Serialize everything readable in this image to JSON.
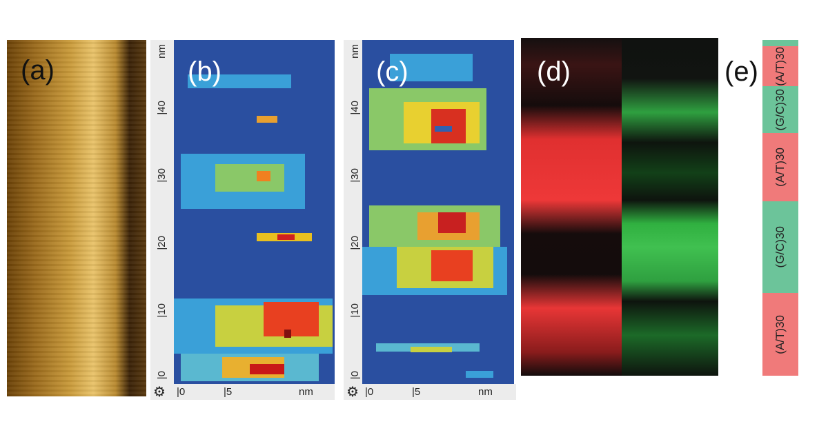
{
  "panels": {
    "a": "(a)",
    "b": "(b)",
    "c": "(c)",
    "d": "(d)",
    "e": "(e)"
  },
  "heatmap_axes": {
    "unit": "nm",
    "y_ticks": [
      "0",
      "10",
      "20",
      "30",
      "40"
    ],
    "x_ticks": [
      "0",
      "5"
    ]
  },
  "sequence_bar": [
    {
      "label": "",
      "type": "G/C"
    },
    {
      "label": "(A/T)30",
      "type": "A/T"
    },
    {
      "label": "(G/C)30",
      "type": "G/C"
    },
    {
      "label": "(A/T)30",
      "type": "A/T"
    },
    {
      "label": "(G/C)30",
      "type": "G/C"
    },
    {
      "label": "(A/T)30",
      "type": "A/T"
    }
  ],
  "colors": {
    "at": "#f07a7a",
    "gc": "#6cc49a",
    "heat_low": "#2a4fa0",
    "heat_high": "#c01818"
  },
  "icons": {
    "settings": "gear-icon"
  }
}
